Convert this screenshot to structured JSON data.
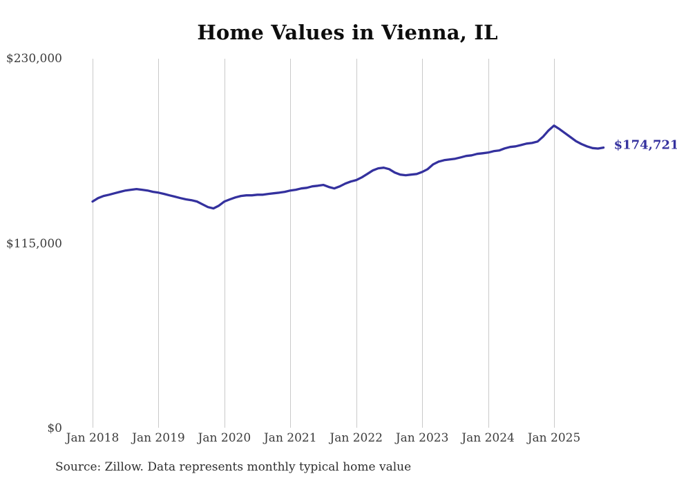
{
  "chart_data": {
    "type": "line",
    "title": "Home Values in Vienna, IL",
    "xlabel": "",
    "ylabel": "",
    "ylim": [
      0,
      230000
    ],
    "grid": "vertical-only",
    "legend": "none",
    "line_color": "#34319e",
    "gridline_color": "#c9c9c9",
    "y_ticks": [
      230000,
      115000,
      0
    ],
    "y_tick_labels": [
      "$230,000",
      "$115,000",
      "$0"
    ],
    "x_tick_labels": [
      "Jan 2018",
      "Jan 2019",
      "Jan 2020",
      "Jan 2021",
      "Jan 2022",
      "Jan 2023",
      "Jan 2024",
      "Jan 2025"
    ],
    "latest_value": 174721,
    "latest_value_label": "$174,721",
    "source_note": "Source: Zillow. Data represents monthly typical home value",
    "series": [
      {
        "name": "Monthly typical home value",
        "months": [
          "2018-01",
          "2018-02",
          "2018-03",
          "2018-04",
          "2018-05",
          "2018-06",
          "2018-07",
          "2018-08",
          "2018-09",
          "2018-10",
          "2018-11",
          "2018-12",
          "2019-01",
          "2019-02",
          "2019-03",
          "2019-04",
          "2019-05",
          "2019-06",
          "2019-07",
          "2019-08",
          "2019-09",
          "2019-10",
          "2019-11",
          "2019-12",
          "2020-01",
          "2020-02",
          "2020-03",
          "2020-04",
          "2020-05",
          "2020-06",
          "2020-07",
          "2020-08",
          "2020-09",
          "2020-10",
          "2020-11",
          "2020-12",
          "2021-01",
          "2021-02",
          "2021-03",
          "2021-04",
          "2021-05",
          "2021-06",
          "2021-07",
          "2021-08",
          "2021-09",
          "2021-10",
          "2021-11",
          "2021-12",
          "2022-01",
          "2022-02",
          "2022-03",
          "2022-04",
          "2022-05",
          "2022-06",
          "2022-07",
          "2022-08",
          "2022-09",
          "2022-10",
          "2022-11",
          "2022-12",
          "2023-01",
          "2023-02",
          "2023-03",
          "2023-04",
          "2023-05",
          "2023-06",
          "2023-07",
          "2023-08",
          "2023-09",
          "2023-10",
          "2023-11",
          "2023-12",
          "2024-01",
          "2024-02",
          "2024-03",
          "2024-04",
          "2024-05",
          "2024-06",
          "2024-07",
          "2024-08",
          "2024-09",
          "2024-10",
          "2024-11",
          "2024-12",
          "2025-01",
          "2025-02",
          "2025-03",
          "2025-04",
          "2025-05",
          "2025-06",
          "2025-07",
          "2025-08",
          "2025-09",
          "2025-10"
        ],
        "values": [
          141200,
          143300,
          144600,
          145400,
          146300,
          147200,
          148000,
          148500,
          148900,
          148500,
          148000,
          147200,
          146700,
          145900,
          145000,
          144200,
          143300,
          142500,
          142000,
          141200,
          139400,
          137700,
          136900,
          138600,
          141200,
          142500,
          143700,
          144600,
          145000,
          145000,
          145400,
          145400,
          145900,
          146300,
          146700,
          147200,
          148000,
          148500,
          149300,
          149700,
          150600,
          151000,
          151500,
          150200,
          149300,
          150600,
          152300,
          153600,
          154500,
          156200,
          158300,
          160500,
          161800,
          162200,
          161300,
          159200,
          157900,
          157500,
          157900,
          158300,
          159600,
          161300,
          164300,
          166000,
          166900,
          167300,
          167800,
          168600,
          169500,
          169900,
          170800,
          171200,
          171600,
          172500,
          172900,
          174200,
          175100,
          175500,
          176300,
          177200,
          177600,
          178500,
          181500,
          185400,
          188400,
          186200,
          183700,
          181200,
          178700,
          176900,
          175500,
          174400,
          174100,
          174721
        ]
      }
    ]
  }
}
